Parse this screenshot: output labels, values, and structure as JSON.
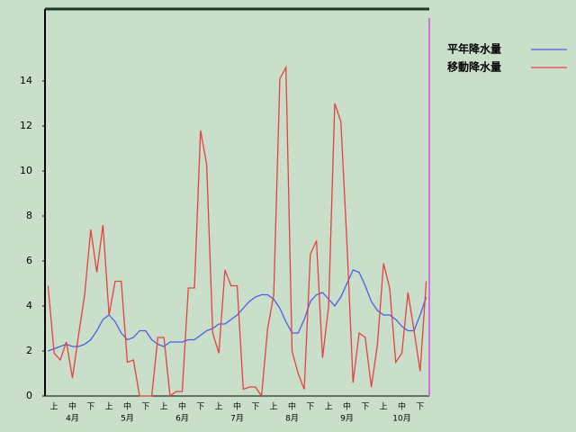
{
  "chart_data": {
    "type": "line",
    "categories": [
      null,
      "上",
      null,
      null,
      "中",
      null,
      null,
      "下",
      null,
      null,
      "上",
      null,
      null,
      "中",
      null,
      null,
      "下",
      null,
      null,
      "上",
      null,
      null,
      "中",
      null,
      null,
      "下",
      null,
      null,
      "上",
      null,
      null,
      "中",
      null,
      null,
      "下",
      null,
      null,
      "上",
      null,
      null,
      "中",
      null,
      null,
      "下",
      null,
      null,
      "上",
      null,
      null,
      "中",
      null,
      null,
      "下",
      null,
      null,
      "上",
      null,
      null,
      "中",
      null,
      null,
      "下",
      null
    ],
    "month_labels": [
      "4月",
      "5月",
      "6月",
      "7月",
      "8月",
      "9月",
      "10月"
    ],
    "series": [
      {
        "name": "平年降水量",
        "color": "#4a5ee8",
        "values": [
          2.0,
          2.1,
          2.2,
          2.3,
          2.2,
          2.2,
          2.3,
          2.5,
          2.9,
          3.4,
          3.6,
          3.3,
          2.8,
          2.5,
          2.6,
          2.9,
          2.9,
          2.5,
          2.3,
          2.2,
          2.4,
          2.4,
          2.4,
          2.5,
          2.5,
          2.7,
          2.9,
          3.0,
          3.2,
          3.2,
          3.4,
          3.6,
          3.9,
          4.2,
          4.4,
          4.5,
          4.5,
          4.3,
          3.9,
          3.3,
          2.8,
          2.8,
          3.4,
          4.2,
          4.5,
          4.6,
          4.3,
          4.0,
          4.4,
          5.0,
          5.6,
          5.5,
          4.9,
          4.2,
          3.8,
          3.6,
          3.6,
          3.4,
          3.1,
          2.9,
          2.9,
          3.6,
          4.4
        ]
      },
      {
        "name": "移動降水量",
        "color": "#e84040",
        "values": [
          4.9,
          1.9,
          1.6,
          2.4,
          0.8,
          2.7,
          4.5,
          7.4,
          5.5,
          7.6,
          3.6,
          5.1,
          5.1,
          1.5,
          1.6,
          0,
          0,
          0,
          2.6,
          2.6,
          0,
          0.2,
          0.2,
          4.8,
          4.8,
          11.8,
          10.3,
          2.8,
          1.9,
          5.6,
          4.9,
          4.9,
          0.3,
          0.4,
          0.4,
          0,
          3.0,
          4.5,
          14.1,
          14.6,
          2.0,
          1.0,
          0.3,
          6.3,
          6.9,
          1.7,
          4.0,
          13.0,
          12.2,
          6.8,
          0.6,
          2.8,
          2.6,
          0.4,
          2.3,
          5.9,
          4.8,
          1.5,
          1.9,
          4.6,
          2.9,
          1.1,
          5.1
        ]
      }
    ],
    "ylim": [
      0,
      17.2
    ],
    "yticks": [
      0,
      2,
      4,
      6,
      8,
      10,
      12,
      14
    ]
  }
}
